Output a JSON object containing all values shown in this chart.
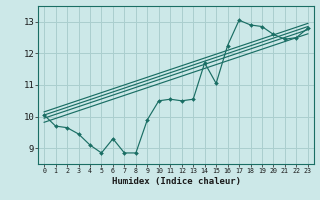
{
  "xlabel": "Humidex (Indice chaleur)",
  "xlim": [
    -0.5,
    23.5
  ],
  "ylim": [
    8.5,
    13.5
  ],
  "yticks": [
    9,
    10,
    11,
    12,
    13
  ],
  "xticks": [
    0,
    1,
    2,
    3,
    4,
    5,
    6,
    7,
    8,
    9,
    10,
    11,
    12,
    13,
    14,
    15,
    16,
    17,
    18,
    19,
    20,
    21,
    22,
    23
  ],
  "bg_color": "#cce8e8",
  "grid_color": "#aacece",
  "line_color": "#1a6e64",
  "data_x": [
    0,
    1,
    2,
    3,
    4,
    5,
    6,
    7,
    8,
    9,
    10,
    11,
    12,
    13,
    14,
    15,
    16,
    17,
    18,
    19,
    20,
    21,
    22,
    23
  ],
  "data_y": [
    10.05,
    9.7,
    9.65,
    9.45,
    9.1,
    8.85,
    9.3,
    8.85,
    8.85,
    9.9,
    10.5,
    10.55,
    10.5,
    10.55,
    11.7,
    11.05,
    12.25,
    13.05,
    12.9,
    12.85,
    12.6,
    12.45,
    12.5,
    12.8
  ],
  "trend_lines": [
    {
      "x": [
        0,
        23
      ],
      "y": [
        9.82,
        12.62
      ]
    },
    {
      "x": [
        0,
        23
      ],
      "y": [
        9.95,
        12.75
      ]
    },
    {
      "x": [
        0,
        23
      ],
      "y": [
        10.05,
        12.85
      ]
    },
    {
      "x": [
        0,
        23
      ],
      "y": [
        10.15,
        12.95
      ]
    }
  ]
}
